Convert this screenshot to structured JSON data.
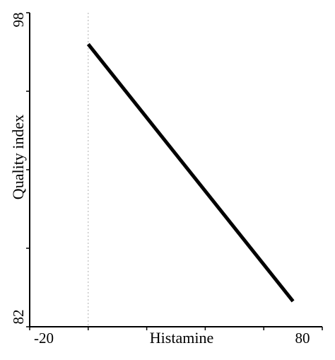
{
  "chart_data": {
    "type": "line",
    "title": "",
    "xlabel": "Histamine",
    "ylabel": "Quality index",
    "xlim": [
      -20,
      80
    ],
    "ylim": [
      82,
      98
    ],
    "x_tick_labels": [
      "-20",
      "80"
    ],
    "y_tick_labels": [
      "98",
      "82"
    ],
    "reference_line": {
      "x": 0,
      "style": "dotted",
      "color": "#b0b0b0"
    },
    "grid": false,
    "legend": "none",
    "series": [
      {
        "points": [
          {
            "x": 0,
            "y": 96.4
          },
          {
            "x": 70,
            "y": 83.3
          }
        ],
        "color": "#000000"
      }
    ]
  }
}
